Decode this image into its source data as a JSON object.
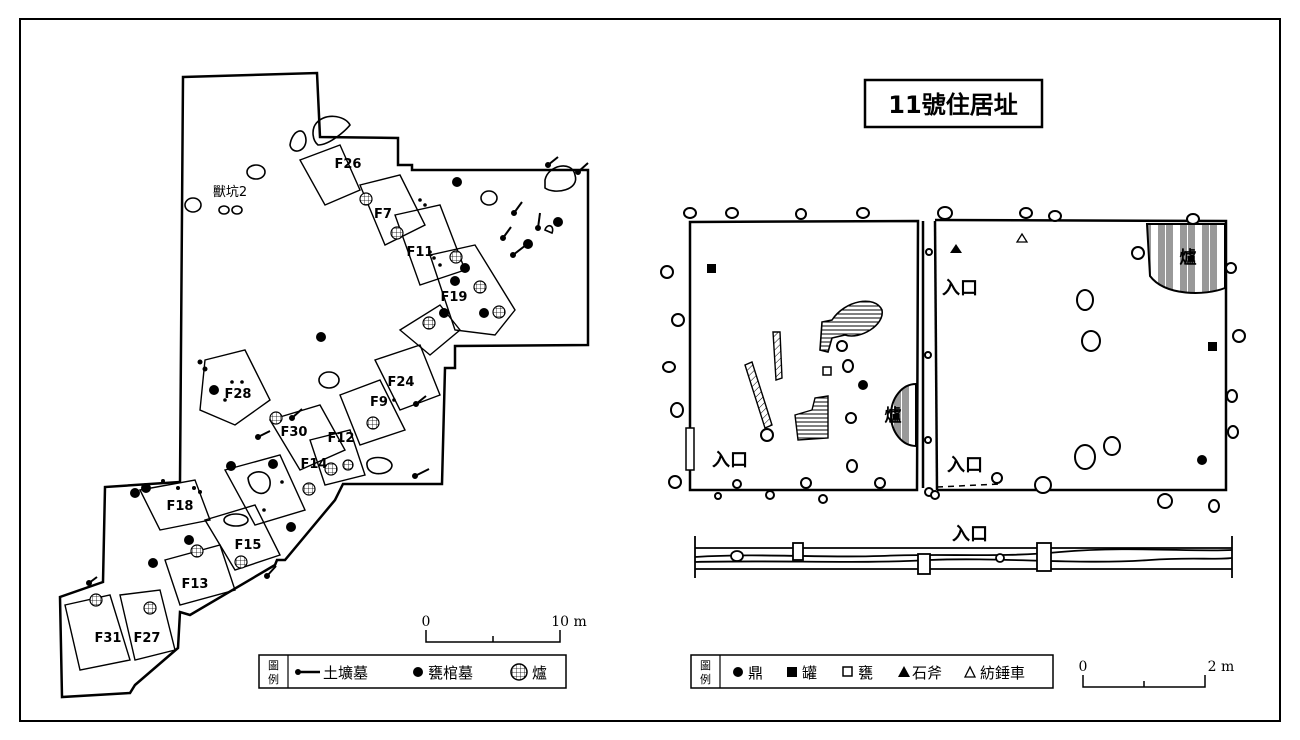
{
  "left_map": {
    "labels": {
      "F26": "F26",
      "F7": "F7",
      "F11": "F11",
      "F19": "F19",
      "F24": "F24",
      "F9": "F9",
      "F28": "F28",
      "F30": "F30",
      "F12": "F12",
      "F14": "F14",
      "F18": "F18",
      "F15": "F15",
      "F13": "F13",
      "F31": "F31",
      "F27": "F27",
      "pit2": "獸坑2"
    },
    "scale": {
      "start": "0",
      "end": "10 m"
    },
    "legend": {
      "title": "圖例",
      "items": [
        {
          "symbol": "pit-burial-icon",
          "label": "土壙墓"
        },
        {
          "symbol": "filled-circle-icon",
          "label": "甕棺墓"
        },
        {
          "symbol": "hatched-circle-icon",
          "label": "爐"
        }
      ]
    }
  },
  "right_map": {
    "title": "11號住居址",
    "hearth_label": "爐",
    "entrance_label": "入口",
    "scale": {
      "start": "0",
      "end": "2 m"
    },
    "legend": {
      "title": "圖例",
      "items": [
        {
          "symbol": "filled-circle-icon",
          "label": "鼎"
        },
        {
          "symbol": "filled-square-icon",
          "label": "罐"
        },
        {
          "symbol": "hollow-square-icon",
          "label": "甕"
        },
        {
          "symbol": "filled-triangle-icon",
          "label": "石斧"
        },
        {
          "symbol": "hollow-triangle-icon",
          "label": "紡錘車"
        }
      ]
    }
  }
}
